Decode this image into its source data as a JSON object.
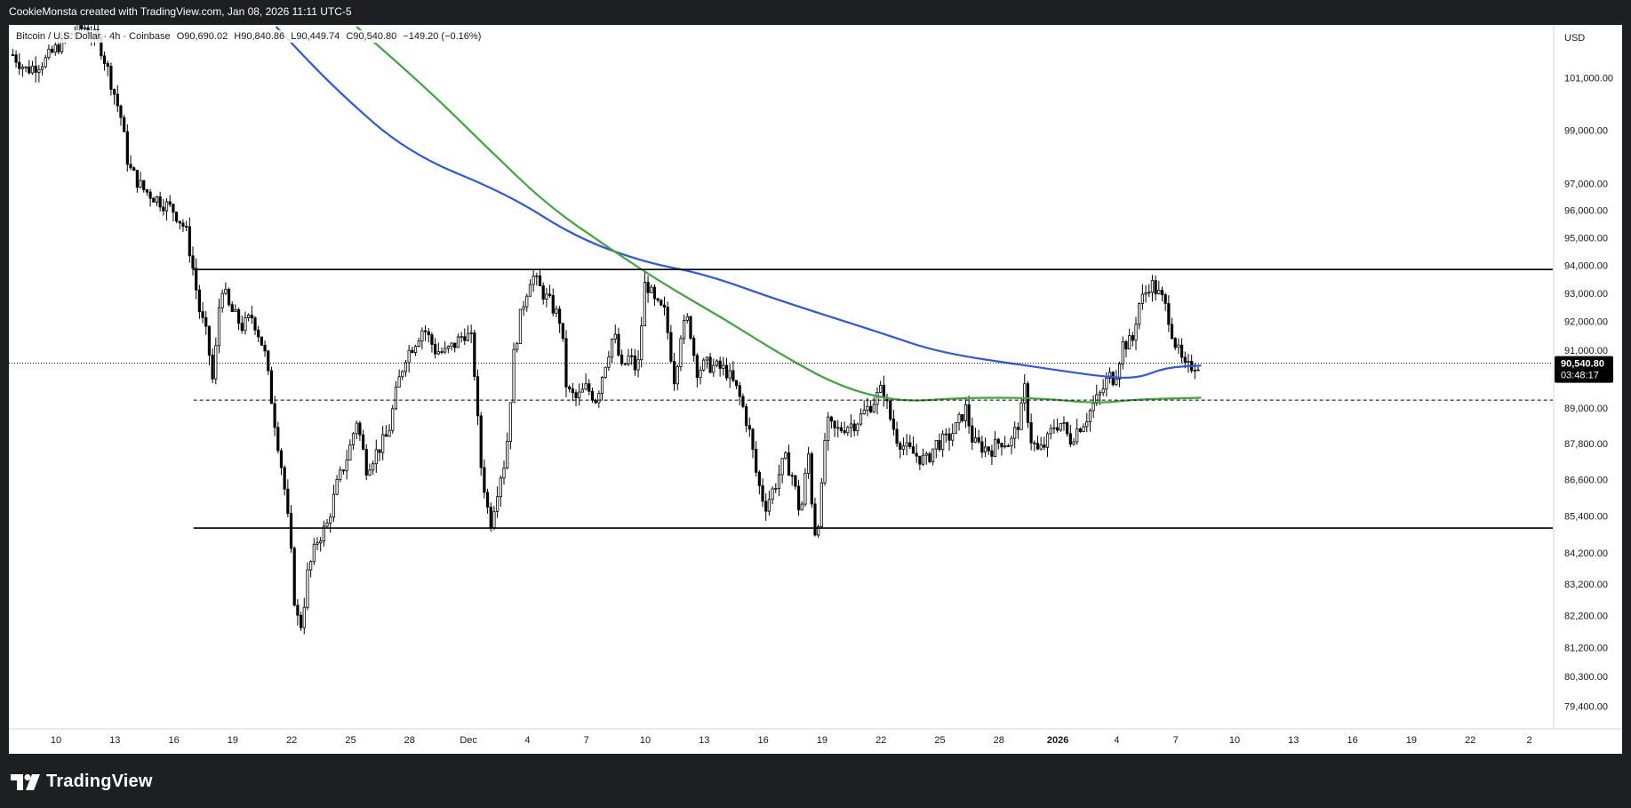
{
  "attribution": "CookieMonsta created with TradingView.com, Jan 08, 2026 11:11 UTC-5",
  "legend": {
    "symbol": "Bitcoin / U.S. Dollar · 4h · Coinbase",
    "open": "O90,690.02",
    "high": "H90,840.86",
    "low": "L90,449.74",
    "close": "C90,540.80",
    "change": "−149.20 (−0.16%)"
  },
  "price_axis": {
    "currency": "USD",
    "current_price": "90,540.80",
    "countdown": "03:48:17"
  },
  "footer": {
    "brand": "TradingView"
  },
  "colors": {
    "up": "#ffffff",
    "down": "#000000",
    "ma_blue": "#2c57e6",
    "ma_green": "#3ba73b",
    "level_line": "#000000",
    "price_label_bg": "#000000"
  },
  "icons": {
    "logo": "tradingview-logo-icon"
  },
  "chart_data": {
    "type": "candlestick",
    "log_scale": true,
    "y_ticks": [
      {
        "value": 101000,
        "label": "101,000.00"
      },
      {
        "value": 99000,
        "label": "99,000.00"
      },
      {
        "value": 97000,
        "label": "97,000.00"
      },
      {
        "value": 96000,
        "label": "96,000.00"
      },
      {
        "value": 95000,
        "label": "95,000.00"
      },
      {
        "value": 94000,
        "label": "94,000.00"
      },
      {
        "value": 93000,
        "label": "93,000.00"
      },
      {
        "value": 92000,
        "label": "92,000.00"
      },
      {
        "value": 91000,
        "label": "91,000.00"
      },
      {
        "value": 89000,
        "label": "89,000.00"
      },
      {
        "value": 87800,
        "label": "87,800.00"
      },
      {
        "value": 86600,
        "label": "86,600.00"
      },
      {
        "value": 85400,
        "label": "85,400.00"
      },
      {
        "value": 84200,
        "label": "84,200.00"
      },
      {
        "value": 83200,
        "label": "83,200.00"
      },
      {
        "value": 82200,
        "label": "82,200.00"
      },
      {
        "value": 81200,
        "label": "81,200.00"
      },
      {
        "value": 80300,
        "label": "80,300.00"
      },
      {
        "value": 79400,
        "label": "79,400.00"
      }
    ],
    "x_ticks": [
      {
        "label": "10",
        "day": 0,
        "bold": false
      },
      {
        "label": "13",
        "day": 3,
        "bold": false
      },
      {
        "label": "16",
        "day": 6,
        "bold": false
      },
      {
        "label": "19",
        "day": 9,
        "bold": false
      },
      {
        "label": "22",
        "day": 12,
        "bold": false
      },
      {
        "label": "25",
        "day": 15,
        "bold": false
      },
      {
        "label": "28",
        "day": 18,
        "bold": false
      },
      {
        "label": "Dec",
        "day": 21,
        "bold": false
      },
      {
        "label": "4",
        "day": 24,
        "bold": false
      },
      {
        "label": "7",
        "day": 27,
        "bold": false
      },
      {
        "label": "10",
        "day": 30,
        "bold": false
      },
      {
        "label": "13",
        "day": 33,
        "bold": false
      },
      {
        "label": "16",
        "day": 36,
        "bold": false
      },
      {
        "label": "19",
        "day": 39,
        "bold": false
      },
      {
        "label": "22",
        "day": 42,
        "bold": false
      },
      {
        "label": "25",
        "day": 45,
        "bold": false
      },
      {
        "label": "28",
        "day": 48,
        "bold": false
      },
      {
        "label": "2026",
        "day": 51,
        "bold": true
      },
      {
        "label": "4",
        "day": 54,
        "bold": false
      },
      {
        "label": "7",
        "day": 57,
        "bold": false
      },
      {
        "label": "10",
        "day": 60,
        "bold": false
      },
      {
        "label": "13",
        "day": 63,
        "bold": false
      },
      {
        "label": "16",
        "day": 66,
        "bold": false
      },
      {
        "label": "19",
        "day": 69,
        "bold": false
      },
      {
        "label": "22",
        "day": 72,
        "bold": false
      },
      {
        "label": "2",
        "day": 75,
        "bold": false
      }
    ],
    "close_path": [
      [
        -2.2,
        101900
      ],
      [
        -1.5,
        101300
      ],
      [
        -0.5,
        101700
      ],
      [
        0.5,
        102600
      ],
      [
        1.5,
        103000
      ],
      [
        2.2,
        102400
      ],
      [
        2.6,
        101400
      ],
      [
        3.3,
        99500
      ],
      [
        3.7,
        97600
      ],
      [
        4.4,
        96800
      ],
      [
        5.2,
        96400
      ],
      [
        6.0,
        96000
      ],
      [
        6.6,
        95300
      ],
      [
        6.9,
        94200
      ],
      [
        7.3,
        92400
      ],
      [
        7.7,
        91400
      ],
      [
        8.0,
        89800
      ],
      [
        8.4,
        93400
      ],
      [
        8.8,
        92500
      ],
      [
        9.5,
        91800
      ],
      [
        10.0,
        92200
      ],
      [
        10.6,
        91000
      ],
      [
        11.1,
        88700
      ],
      [
        11.6,
        86500
      ],
      [
        11.9,
        84700
      ],
      [
        12.2,
        82200
      ],
      [
        12.5,
        81900
      ],
      [
        12.8,
        83500
      ],
      [
        13.3,
        84600
      ],
      [
        13.8,
        85100
      ],
      [
        14.3,
        86400
      ],
      [
        14.9,
        87500
      ],
      [
        15.3,
        88600
      ],
      [
        15.8,
        87000
      ],
      [
        16.3,
        87500
      ],
      [
        16.9,
        88100
      ],
      [
        17.4,
        89800
      ],
      [
        17.8,
        90800
      ],
      [
        18.2,
        91200
      ],
      [
        18.7,
        91800
      ],
      [
        19.3,
        91000
      ],
      [
        19.8,
        90900
      ],
      [
        20.3,
        91200
      ],
      [
        20.8,
        91600
      ],
      [
        21.2,
        91300
      ],
      [
        21.6,
        87200
      ],
      [
        22.1,
        85100
      ],
      [
        22.6,
        86700
      ],
      [
        22.9,
        87300
      ],
      [
        23.3,
        90800
      ],
      [
        23.7,
        92400
      ],
      [
        24.2,
        93700
      ],
      [
        24.7,
        93100
      ],
      [
        25.2,
        92600
      ],
      [
        25.7,
        92000
      ],
      [
        26.0,
        89600
      ],
      [
        26.5,
        89300
      ],
      [
        27.0,
        89700
      ],
      [
        27.5,
        89300
      ],
      [
        27.9,
        90400
      ],
      [
        28.4,
        91600
      ],
      [
        28.8,
        90300
      ],
      [
        29.2,
        90800
      ],
      [
        29.6,
        90200
      ],
      [
        30.0,
        93500
      ],
      [
        30.5,
        92600
      ],
      [
        31.0,
        92300
      ],
      [
        31.5,
        89900
      ],
      [
        31.8,
        91600
      ],
      [
        32.2,
        92100
      ],
      [
        32.6,
        90300
      ],
      [
        33.1,
        90500
      ],
      [
        33.6,
        90400
      ],
      [
        34.1,
        90300
      ],
      [
        34.6,
        89700
      ],
      [
        34.9,
        89200
      ],
      [
        35.3,
        88200
      ],
      [
        35.7,
        86600
      ],
      [
        36.1,
        85700
      ],
      [
        36.6,
        86400
      ],
      [
        37.1,
        87300
      ],
      [
        37.5,
        86700
      ],
      [
        37.9,
        85400
      ],
      [
        38.3,
        87500
      ],
      [
        38.6,
        84800
      ],
      [
        38.9,
        85500
      ],
      [
        39.2,
        88500
      ],
      [
        39.7,
        88200
      ],
      [
        40.2,
        88400
      ],
      [
        40.7,
        88500
      ],
      [
        41.2,
        88900
      ],
      [
        41.7,
        89300
      ],
      [
        42.1,
        89700
      ],
      [
        42.4,
        88800
      ],
      [
        42.8,
        88000
      ],
      [
        43.3,
        87600
      ],
      [
        43.8,
        87400
      ],
      [
        44.3,
        87200
      ],
      [
        44.8,
        87800
      ],
      [
        45.3,
        87900
      ],
      [
        45.8,
        88300
      ],
      [
        46.3,
        89000
      ],
      [
        46.7,
        87800
      ],
      [
        47.1,
        87700
      ],
      [
        47.6,
        87600
      ],
      [
        48.1,
        87900
      ],
      [
        48.6,
        87800
      ],
      [
        49.1,
        88700
      ],
      [
        49.3,
        89700
      ],
      [
        49.6,
        88000
      ],
      [
        50.0,
        87500
      ],
      [
        50.4,
        87800
      ],
      [
        50.8,
        88400
      ],
      [
        51.2,
        88500
      ],
      [
        51.6,
        87900
      ],
      [
        52.0,
        88300
      ],
      [
        52.4,
        88600
      ],
      [
        52.8,
        89100
      ],
      [
        53.2,
        89500
      ],
      [
        53.6,
        90100
      ],
      [
        53.9,
        90000
      ],
      [
        54.3,
        91200
      ],
      [
        54.8,
        91300
      ],
      [
        55.1,
        92600
      ],
      [
        55.4,
        92900
      ],
      [
        55.7,
        93400
      ],
      [
        56.0,
        93100
      ],
      [
        56.3,
        92800
      ],
      [
        56.6,
        92300
      ],
      [
        56.9,
        91400
      ],
      [
        57.2,
        90800
      ],
      [
        57.5,
        90300
      ],
      [
        57.9,
        90500
      ],
      [
        58.3,
        90541
      ]
    ],
    "candle_range": {
      "start_day": -2.2,
      "end_day": 58.3,
      "step_days": 0.1667
    },
    "moving_averages": [
      {
        "color": "blue",
        "points": [
          [
            11.2,
            103000
          ],
          [
            14.3,
            100500
          ],
          [
            18.0,
            98100
          ],
          [
            23.0,
            96600
          ],
          [
            26.5,
            95000
          ],
          [
            30.0,
            94100
          ],
          [
            33.0,
            93700
          ],
          [
            37.0,
            92700
          ],
          [
            42.0,
            91600
          ],
          [
            45.0,
            90900
          ],
          [
            50.0,
            90400
          ],
          [
            53.0,
            90100
          ],
          [
            55.0,
            90000
          ],
          [
            56.5,
            90400
          ],
          [
            58.3,
            90460
          ]
        ]
      },
      {
        "color": "green",
        "points": [
          [
            15.3,
            103000
          ],
          [
            19.0,
            100500
          ],
          [
            22.0,
            98300
          ],
          [
            25.0,
            96200
          ],
          [
            28.0,
            94700
          ],
          [
            31.0,
            93300
          ],
          [
            34.0,
            92100
          ],
          [
            37.0,
            90800
          ],
          [
            40.0,
            89700
          ],
          [
            43.0,
            89200
          ],
          [
            46.0,
            89350
          ],
          [
            50.0,
            89350
          ],
          [
            53.0,
            89150
          ],
          [
            55.0,
            89300
          ],
          [
            58.3,
            89350
          ]
        ]
      }
    ],
    "horizontal_levels": [
      {
        "price": 93850,
        "style": "solid",
        "from_day": 7.0
      },
      {
        "price": 89270,
        "style": "dashed",
        "from_day": 7.0
      },
      {
        "price": 85000,
        "style": "solid",
        "from_day": 7.0
      },
      {
        "price": 90541,
        "style": "dotted",
        "from_day": -2.2
      }
    ],
    "y_range": [
      78600,
      103000
    ]
  }
}
